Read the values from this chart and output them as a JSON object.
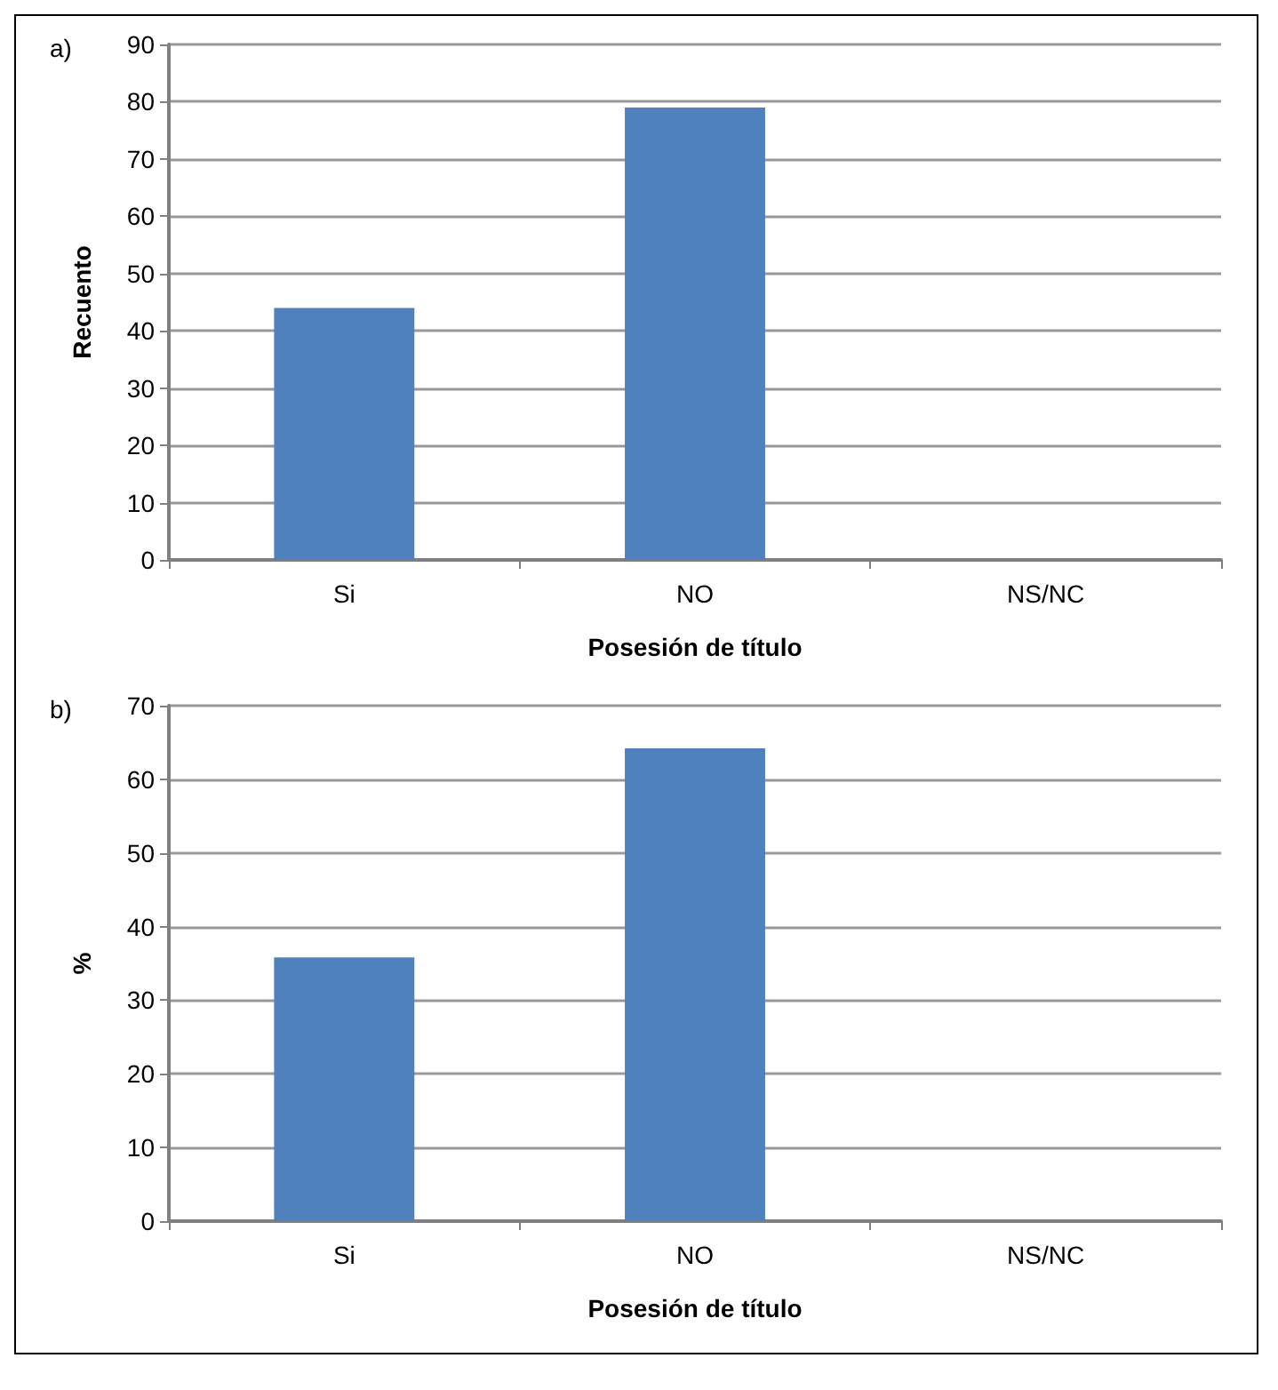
{
  "chart_data": [
    {
      "type": "bar",
      "title": "a)",
      "xlabel": "Posesión de título",
      "ylabel": "Recuento",
      "categories": [
        "Si",
        "NO",
        "NS/NC"
      ],
      "values": [
        44,
        79,
        0
      ],
      "color": "#4f81bd",
      "ylim": [
        0,
        90
      ],
      "yticks": [
        0,
        10,
        20,
        30,
        40,
        50,
        60,
        70,
        80,
        90
      ],
      "grid": "y"
    },
    {
      "type": "bar",
      "title": "b)",
      "xlabel": "Posesión de título",
      "ylabel": "%",
      "categories": [
        "Si",
        "NO",
        "NS/NC"
      ],
      "values": [
        35.8,
        64.2,
        0
      ],
      "color": "#4f81bd",
      "ylim": [
        0,
        70
      ],
      "yticks": [
        0,
        10,
        20,
        30,
        40,
        50,
        60,
        70
      ],
      "grid": "y"
    }
  ]
}
